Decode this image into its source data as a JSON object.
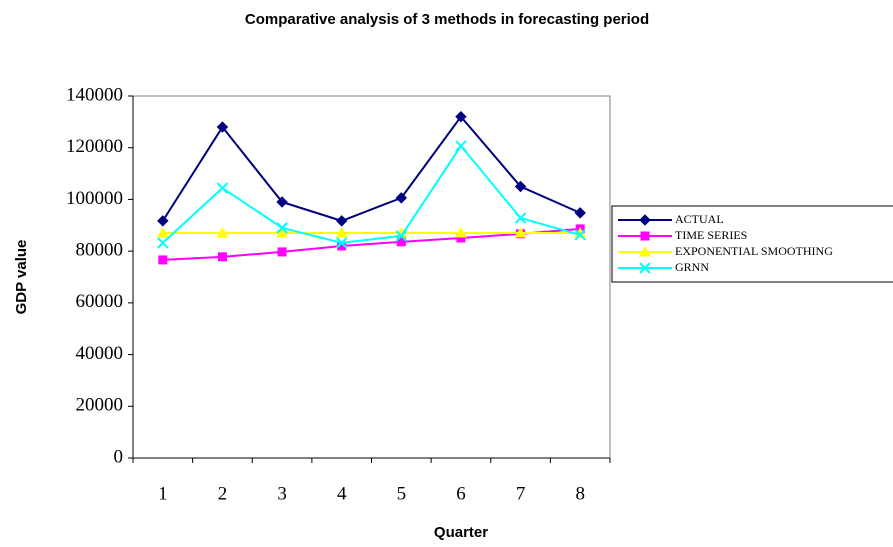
{
  "chart_data": {
    "type": "line",
    "title": "Comparative analysis of 3 methods in forecasting period",
    "x_label": "Quarter",
    "y_label": "GDP value",
    "categories": [
      "1",
      "2",
      "3",
      "4",
      "5",
      "6",
      "7",
      "8"
    ],
    "series": [
      {
        "name": "ACTUAL",
        "color": "#000080",
        "marker": "diamond",
        "values": [
          91700,
          128000,
          99000,
          91700,
          100600,
          132000,
          105000,
          94800
        ]
      },
      {
        "name": "TIME SERIES",
        "color": "#FF00FF",
        "marker": "square",
        "values": [
          76600,
          77800,
          79700,
          82000,
          83600,
          85100,
          86700,
          88600
        ]
      },
      {
        "name": "EXPONENTIAL SMOOTHING",
        "color": "#FFFF00",
        "marker": "triangle",
        "values": [
          87000,
          87000,
          87000,
          87000,
          87000,
          87000,
          87000,
          87000
        ]
      },
      {
        "name": "GRNN",
        "color": "#00FFFF",
        "marker": "x",
        "values": [
          83200,
          104400,
          89000,
          83200,
          85900,
          120700,
          92800,
          86300
        ]
      }
    ],
    "ylim": [
      0,
      140000
    ],
    "yticks": [
      0,
      20000,
      40000,
      60000,
      80000,
      100000,
      120000,
      140000
    ],
    "grid": false,
    "legend": "right"
  }
}
